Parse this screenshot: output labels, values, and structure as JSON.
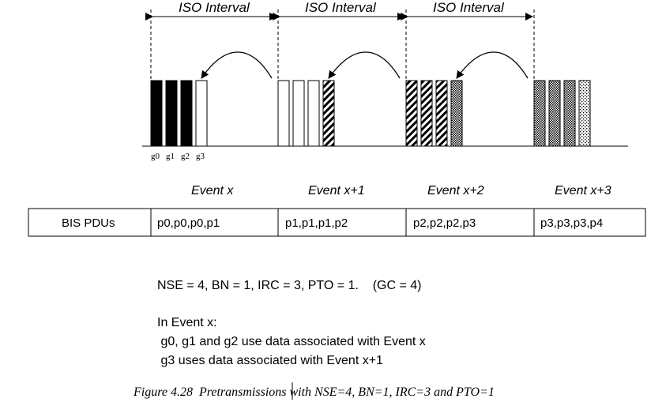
{
  "figure": {
    "interval_label": "ISO Interval",
    "gap_labels": [
      "g0",
      "g1",
      "g2",
      "g3"
    ],
    "events": [
      "Event x",
      "Event x+1",
      "Event  x+2",
      "Event x+3"
    ],
    "table": {
      "row_header": "BIS PDUs",
      "cells": [
        "p0,p0,p0,p1",
        "p1,p1,p1,p2",
        "p2,p2,p2,p3",
        "p3,p3,p3,p4"
      ]
    },
    "params_line": "NSE = 4, BN = 1, IRC = 3, PTO = 1.    (GC = 4)",
    "explanation": [
      "In Event x:",
      " g0, g1 and g2 use data associated with Event x",
      " g3 uses data associated with Event x+1"
    ],
    "caption": "Figure 4.28  Pretransmissions with NSE=4, BN=1, IRC=3 and PTO=1"
  }
}
